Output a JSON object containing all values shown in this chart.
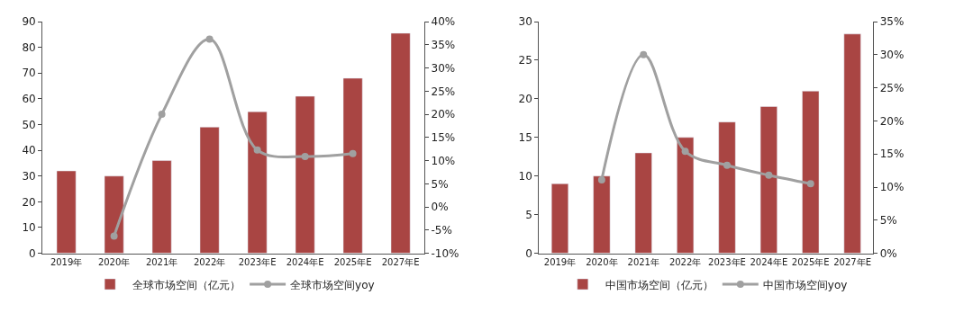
{
  "chart_data": [
    {
      "type": "bar",
      "categories": [
        "2019年",
        "2020年",
        "2021年",
        "2022年",
        "2023年E",
        "2024年E",
        "2025年E",
        "2027年E"
      ],
      "ylim": [
        0,
        90
      ],
      "yticks": [
        0,
        10,
        20,
        30,
        40,
        50,
        60,
        70,
        80,
        90
      ],
      "y2lim": [
        -10,
        40
      ],
      "y2ticks": [
        {
          "value": -10,
          "label": "-10%"
        },
        {
          "value": -5,
          "label": "-5%"
        },
        {
          "value": 0,
          "label": "0%"
        },
        {
          "value": 5,
          "label": "5%"
        },
        {
          "value": 10,
          "label": "10%"
        },
        {
          "value": 15,
          "label": "15%"
        },
        {
          "value": 20,
          "label": "20%"
        },
        {
          "value": 25,
          "label": "25%"
        },
        {
          "value": 30,
          "label": "30%"
        },
        {
          "value": 35,
          "label": "35%"
        },
        {
          "value": 40,
          "label": "40%"
        }
      ],
      "grid": false,
      "legend": "bottom",
      "marker": "circle",
      "line_style": "solid",
      "series": [
        {
          "name": "全球市场空间（亿元）",
          "color": "#a94543",
          "values": [
            32,
            30,
            36,
            49,
            55,
            61,
            68,
            85.5
          ]
        },
        {
          "name": "全球市场空间yoy",
          "type": "line",
          "axis": "y2",
          "color": "#a0a0a0",
          "values": [
            null,
            -6.3,
            20,
            36.2,
            12.3,
            10.9,
            11.5,
            null
          ]
        }
      ]
    },
    {
      "type": "bar",
      "categories": [
        "2019年",
        "2020年",
        "2021年",
        "2022年",
        "2023年E",
        "2024年E",
        "2025年E",
        "2027年E"
      ],
      "ylim": [
        0,
        30
      ],
      "yticks": [
        0,
        5,
        10,
        15,
        20,
        25,
        30
      ],
      "y2lim": [
        0,
        35
      ],
      "y2ticks": [
        {
          "value": 0,
          "label": "0%"
        },
        {
          "value": 5,
          "label": "5%"
        },
        {
          "value": 10,
          "label": "10%"
        },
        {
          "value": 15,
          "label": "15%"
        },
        {
          "value": 20,
          "label": "20%"
        },
        {
          "value": 25,
          "label": "25%"
        },
        {
          "value": 30,
          "label": "30%"
        },
        {
          "value": 35,
          "label": "35%"
        }
      ],
      "grid": false,
      "legend": "bottom",
      "marker": "circle",
      "line_style": "solid",
      "series": [
        {
          "name": "中国市场空间（亿元）",
          "color": "#a94543",
          "values": [
            9,
            10,
            13,
            15,
            17,
            19,
            21,
            28.4
          ]
        },
        {
          "name": "中国市场空间yoy",
          "type": "line",
          "axis": "y2",
          "color": "#a0a0a0",
          "values": [
            null,
            11.1,
            30,
            15.4,
            13.3,
            11.8,
            10.5,
            null
          ]
        }
      ]
    }
  ]
}
